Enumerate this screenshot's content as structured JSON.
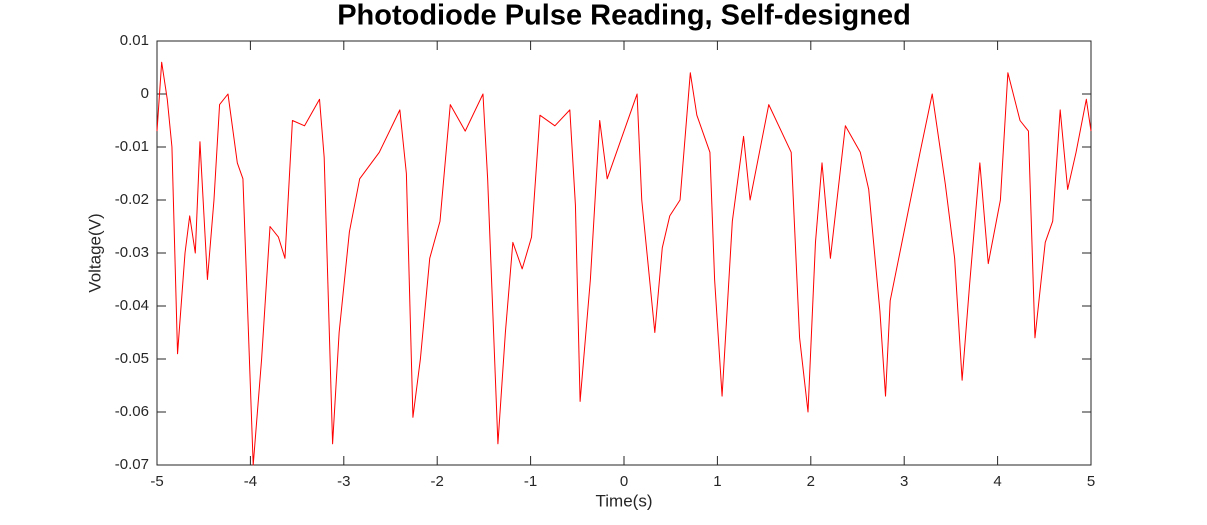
{
  "chart_data": {
    "type": "line",
    "title": "Photodiode Pulse Reading, Self-designed",
    "xlabel": "Time(s)",
    "ylabel": "Voltage(V)",
    "xlim": [
      -5,
      5
    ],
    "ylim": [
      -0.07,
      0.01
    ],
    "xticks": [
      -5,
      -4,
      -3,
      -2,
      -1,
      0,
      1,
      2,
      3,
      4,
      5
    ],
    "yticks": [
      0.01,
      0,
      -0.01,
      -0.02,
      -0.03,
      -0.04,
      -0.05,
      -0.06,
      -0.07
    ],
    "grid": false,
    "x": [
      -5,
      -4.95,
      -4.89,
      -4.84,
      -4.78,
      -4.7,
      -4.65,
      -4.59,
      -4.54,
      -4.46,
      -4.39,
      -4.33,
      -4.24,
      -4.14,
      -4.08,
      -3.97,
      -3.88,
      -3.79,
      -3.7,
      -3.63,
      -3.55,
      -3.42,
      -3.26,
      -3.21,
      -3.12,
      -3.05,
      -2.94,
      -2.83,
      -2.62,
      -2.4,
      -2.33,
      -2.26,
      -2.18,
      -2.08,
      -1.97,
      -1.86,
      -1.7,
      -1.51,
      -1.46,
      -1.35,
      -1.27,
      -1.19,
      -1.09,
      -0.99,
      -0.9,
      -0.74,
      -0.58,
      -0.52,
      -0.47,
      -0.36,
      -0.26,
      -0.18,
      -0.04,
      0.14,
      0.19,
      0.33,
      0.41,
      0.49,
      0.6,
      0.71,
      0.78,
      0.92,
      0.97,
      1.05,
      1.16,
      1.28,
      1.35,
      1.55,
      1.79,
      1.88,
      1.97,
      2.05,
      2.12,
      2.21,
      2.37,
      2.53,
      2.62,
      2.74,
      2.8,
      2.85,
      3.01,
      3.17,
      3.3,
      3.44,
      3.54,
      3.62,
      3.7,
      3.81,
      3.9,
      4.03,
      4.11,
      4.24,
      4.33,
      4.4,
      4.51,
      4.59,
      4.67,
      4.75,
      4.84,
      4.95,
      5
    ],
    "series": [
      {
        "color": "#ff0000",
        "values": [
          -0.007,
          0.006,
          -0.001,
          -0.01,
          -0.049,
          -0.03,
          -0.023,
          -0.03,
          -0.009,
          -0.035,
          -0.02,
          -0.002,
          0.0,
          -0.013,
          -0.016,
          -0.07,
          -0.05,
          -0.025,
          -0.027,
          -0.031,
          -0.005,
          -0.006,
          -0.001,
          -0.012,
          -0.066,
          -0.045,
          -0.026,
          -0.016,
          -0.011,
          -0.003,
          -0.015,
          -0.061,
          -0.05,
          -0.031,
          -0.024,
          -0.002,
          -0.007,
          0.0,
          -0.016,
          -0.066,
          -0.045,
          -0.028,
          -0.033,
          -0.027,
          -0.004,
          -0.006,
          -0.003,
          -0.021,
          -0.058,
          -0.035,
          -0.005,
          -0.016,
          -0.009,
          0.0,
          -0.02,
          -0.045,
          -0.029,
          -0.023,
          -0.02,
          0.004,
          -0.004,
          -0.011,
          -0.035,
          -0.057,
          -0.024,
          -0.008,
          -0.02,
          -0.002,
          -0.011,
          -0.046,
          -0.06,
          -0.028,
          -0.013,
          -0.031,
          -0.006,
          -0.011,
          -0.018,
          -0.041,
          -0.057,
          -0.039,
          -0.025,
          -0.011,
          0.0,
          -0.017,
          -0.031,
          -0.054,
          -0.036,
          -0.013,
          -0.032,
          -0.02,
          0.004,
          -0.005,
          -0.007,
          -0.046,
          -0.028,
          -0.024,
          -0.003,
          -0.018,
          -0.011,
          -0.001,
          -0.007
        ]
      }
    ]
  }
}
